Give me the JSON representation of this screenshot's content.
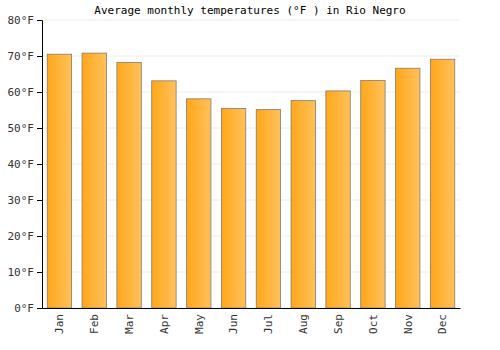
{
  "chart_data": {
    "type": "bar",
    "title": "Average monthly temperatures (°F ) in Rio Negro",
    "categories": [
      "Jan",
      "Feb",
      "Mar",
      "Apr",
      "May",
      "Jun",
      "Jul",
      "Aug",
      "Sep",
      "Oct",
      "Nov",
      "Dec"
    ],
    "values": [
      70.5,
      70.8,
      68.2,
      63.1,
      58.1,
      55.4,
      55.1,
      57.6,
      60.3,
      63.2,
      66.6,
      69.1
    ],
    "color": "#ffb133",
    "ylim": [
      0,
      80
    ],
    "yticks": [
      {
        "value": 0,
        "label": "0°F"
      },
      {
        "value": 10,
        "label": "10°F"
      },
      {
        "value": 20,
        "label": "20°F"
      },
      {
        "value": 30,
        "label": "30°F"
      },
      {
        "value": 40,
        "label": "40°F"
      },
      {
        "value": 50,
        "label": "50°F"
      },
      {
        "value": 60,
        "label": "60°F"
      },
      {
        "value": 70,
        "label": "70°F"
      },
      {
        "value": 80,
        "label": "80°F"
      }
    ],
    "grid": true
  }
}
